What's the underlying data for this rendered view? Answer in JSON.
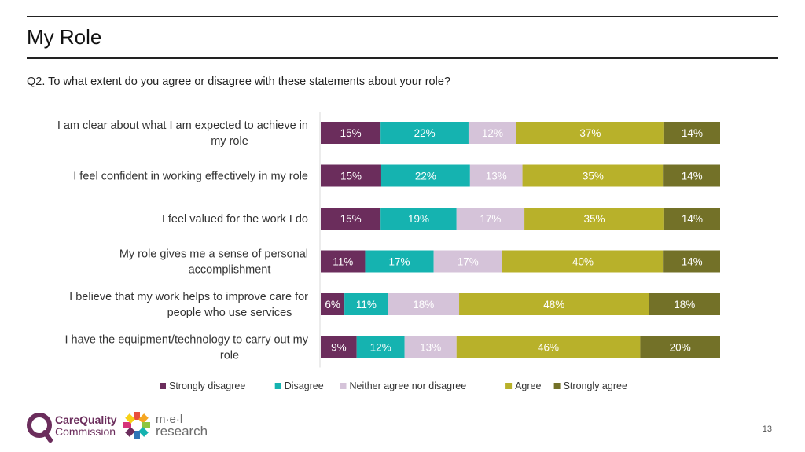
{
  "header": {
    "title": "My Role"
  },
  "question": "Q2. To what extent do you agree or disagree with these statements about your role?",
  "chart_data": {
    "type": "bar",
    "orientation": "horizontal",
    "stacked": true,
    "normalized": true,
    "categories": [
      [
        "I am clear about what I am expected to achieve in",
        "my role"
      ],
      [
        "I feel confident in working effectively in my role"
      ],
      [
        "I feel valued for the work I do"
      ],
      [
        "My role gives me a sense of personal",
        "accomplishment"
      ],
      [
        "I believe that my work helps to improve care for",
        "people who use services"
      ],
      [
        "I have the equipment/technology to carry out my",
        "role"
      ]
    ],
    "series": [
      {
        "name": "Strongly disagree",
        "color": "#6b2d5c",
        "label_color": "#ffffff",
        "values": [
          15,
          15,
          15,
          11,
          6,
          9
        ]
      },
      {
        "name": "Disagree",
        "color": "#15b3b0",
        "label_color": "#ffffff",
        "values": [
          22,
          22,
          19,
          17,
          11,
          12
        ]
      },
      {
        "name": "Neither agree nor disagree",
        "color": "#d5c3d9",
        "label_color": "#ffffff",
        "values": [
          12,
          13,
          17,
          17,
          18,
          13
        ]
      },
      {
        "name": "Agree",
        "color": "#b8b12a",
        "label_color": "#ffffff",
        "values": [
          37,
          35,
          35,
          40,
          48,
          46
        ]
      },
      {
        "name": "Strongly agree",
        "color": "#737128",
        "label_color": "#ffffff",
        "values": [
          14,
          14,
          14,
          14,
          18,
          20
        ]
      }
    ],
    "value_suffix": "%",
    "legend_position": "bottom"
  },
  "footer": {
    "page_number": "13",
    "cqc_logo": {
      "line1": "CareQuality",
      "line2": "Commission",
      "color": "#6b2d5c"
    },
    "mel_logo": {
      "line1": "m·e·l",
      "line2": "research",
      "color": "#6b6b6b"
    }
  }
}
